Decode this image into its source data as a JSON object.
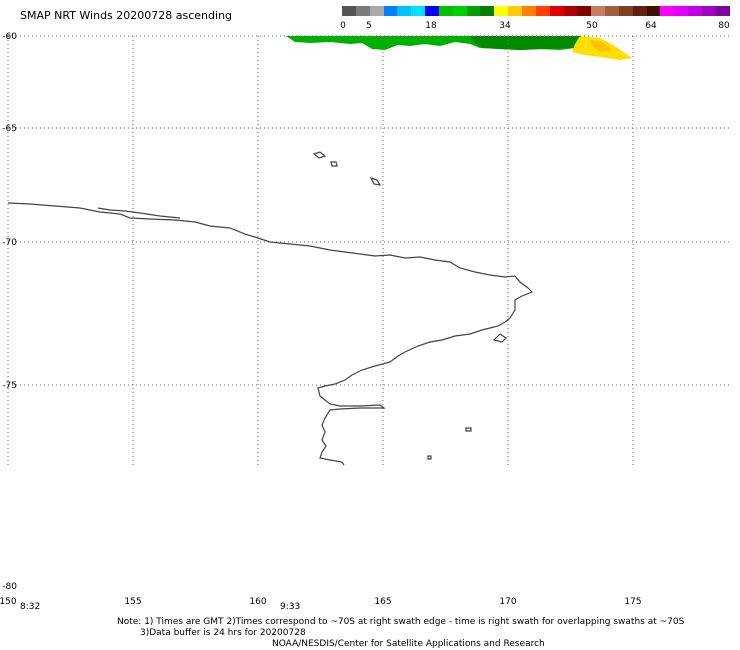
{
  "title": "SMAP NRT Winds 20200728 ascending",
  "scale": {
    "labels": [
      "0",
      "5",
      "18",
      "34",
      "50",
      "64",
      "80"
    ],
    "colors": [
      "#555555",
      "#7a7a7a",
      "#a8a8a8",
      "#0080ff",
      "#00c0ff",
      "#00e0ff",
      "#0000ff",
      "#00c000",
      "#00d000",
      "#00a000",
      "#008000",
      "#ffff00",
      "#ffcc00",
      "#ff8000",
      "#ff4000",
      "#e00000",
      "#b00000",
      "#800000",
      "#c08060",
      "#a06040",
      "#804020",
      "#602010",
      "#401000",
      "#ff00ff",
      "#e000ff",
      "#c000e0",
      "#a000c0",
      "#8000a0"
    ]
  },
  "map": {
    "lat_labels": [
      "-60",
      "-65",
      "-70",
      "-75",
      "-80"
    ],
    "lon_labels": [
      "150",
      "155",
      "160",
      "165",
      "170",
      "175"
    ],
    "time_labels": [
      "8:32",
      "9:33"
    ],
    "colors": {
      "grid": "#666666",
      "coast": "#444444",
      "swath_green": "#00b000",
      "swath_dark": "#008800",
      "swath_yellow": "#ffe000"
    }
  },
  "notes": {
    "line1": "Note: 1) Times are GMT 2)Times correspond to ~70S at right swath edge - time is right swath for overlapping swaths at ~70S",
    "line2": "3)Data buffer is 24 hrs for 20200728",
    "line3": "NOAA/NESDIS/Center for Satellite Applications and Research"
  }
}
